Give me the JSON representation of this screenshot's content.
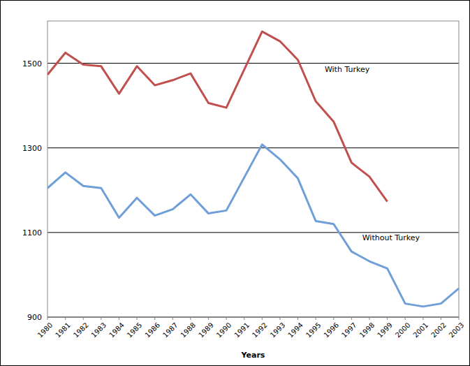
{
  "chart_data": {
    "type": "line",
    "x_label": "Years",
    "categories": [
      "1980",
      "1981",
      "1982",
      "1983",
      "1984",
      "1985",
      "1986",
      "1987",
      "1988",
      "1989",
      "1990",
      "1991",
      "1992",
      "1993",
      "1994",
      "1995",
      "1996",
      "1997",
      "1998",
      "1999",
      "2000",
      "2001",
      "2002",
      "2003"
    ],
    "series": [
      {
        "name": "With Turkey",
        "color": "#c0504d",
        "values": [
          1473,
          1525,
          1497,
          1493,
          1428,
          1493,
          1448,
          1460,
          1476,
          1406,
          1395,
          1485,
          1575,
          1552,
          1508,
          1410,
          1362,
          1265,
          1232,
          1173,
          null,
          null,
          null,
          null
        ]
      },
      {
        "name": "Without Turkey",
        "color": "#6f9fd8",
        "values": [
          1205,
          1242,
          1210,
          1205,
          1135,
          1182,
          1140,
          1155,
          1190,
          1145,
          1152,
          1230,
          1308,
          1273,
          1228,
          1127,
          1120,
          1055,
          1032,
          1015,
          932,
          925,
          932,
          968
        ]
      }
    ],
    "ylim": [
      900,
      1600
    ],
    "yticks": [
      900,
      1100,
      1300,
      1500
    ],
    "grid": true
  }
}
